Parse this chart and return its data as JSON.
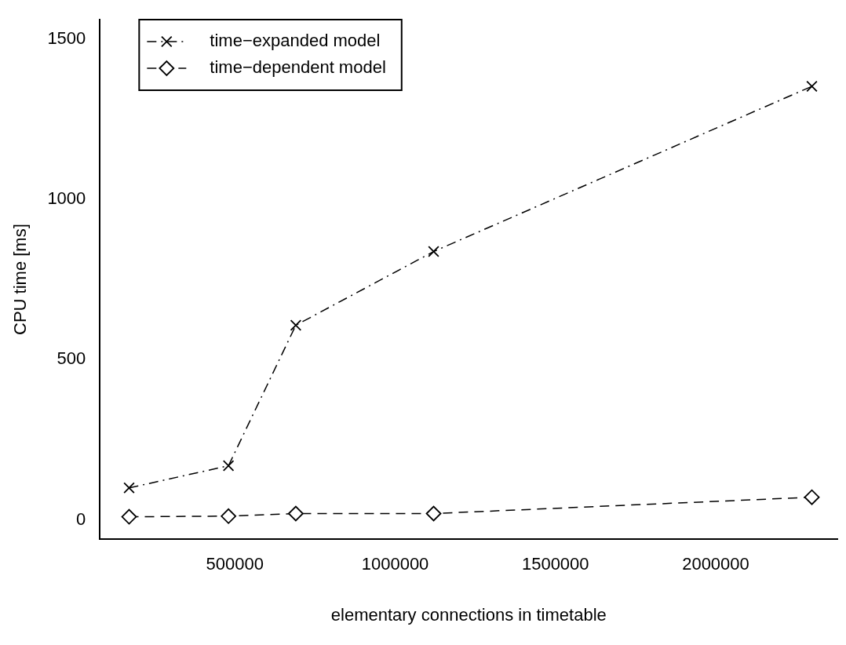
{
  "chart_data": {
    "type": "line",
    "xlabel": "elementary connections in timetable",
    "ylabel": "CPU time [ms]",
    "x": [
      170000,
      480000,
      690000,
      1120000,
      2300000
    ],
    "series": [
      {
        "name": "time−expanded model",
        "color": "#000000",
        "values": [
          100,
          169,
          607,
          837,
          1352
        ],
        "marker": "cross",
        "line_style": "dashdot"
      },
      {
        "name": "time−dependent model",
        "color": "#000000",
        "values": [
          10,
          12,
          20,
          20,
          71
        ],
        "marker": "diamond",
        "line_style": "dashed"
      }
    ],
    "xlim": [
      79000,
      2380000
    ],
    "xticks": [
      500000,
      1000000,
      1500000,
      2000000
    ],
    "ylim": [
      -60,
      1560
    ],
    "yticks": [
      0,
      500,
      1000,
      1500
    ],
    "grid": false,
    "legend": "top left"
  }
}
